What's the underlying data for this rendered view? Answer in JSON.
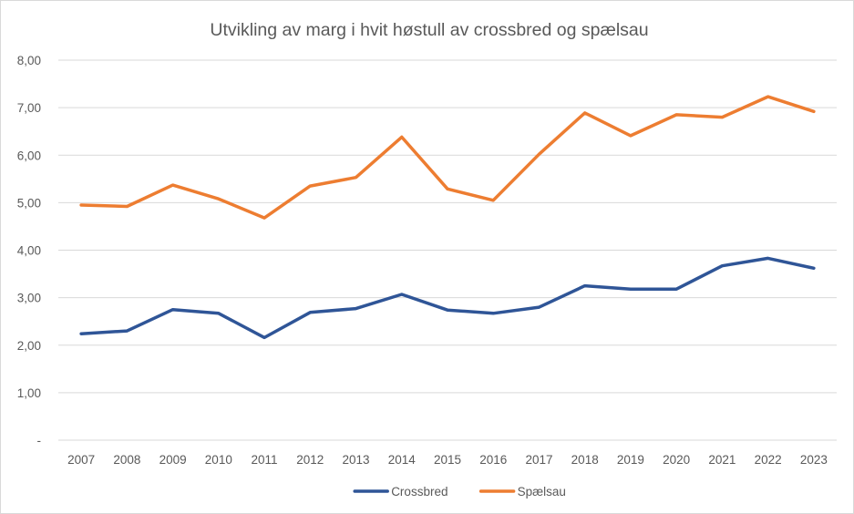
{
  "chart_data": {
    "type": "line",
    "title": "Utvikling  av marg i hvit høstull av crossbred og spælsau",
    "xlabel": "",
    "ylabel": "",
    "x": [
      "2007",
      "2008",
      "2009",
      "2010",
      "2011",
      "2012",
      "2013",
      "2014",
      "2015",
      "2016",
      "2017",
      "2018",
      "2019",
      "2020",
      "2021",
      "2022",
      "2023"
    ],
    "ylim": [
      0,
      8
    ],
    "yticks": [
      0,
      1,
      2,
      3,
      4,
      5,
      6,
      7,
      8
    ],
    "ytick_labels": [
      "-",
      "1,00",
      "2,00",
      "3,00",
      "4,00",
      "5,00",
      "6,00",
      "7,00",
      "8,00"
    ],
    "grid": "horizontal",
    "legend_position": "bottom",
    "series": [
      {
        "name": "Crossbred",
        "color": "#2f5597",
        "values": [
          2.24,
          2.3,
          2.75,
          2.67,
          2.16,
          2.69,
          2.77,
          3.07,
          2.74,
          2.67,
          2.8,
          3.25,
          3.18,
          3.18,
          3.67,
          3.83,
          3.62
        ]
      },
      {
        "name": "Spælsau",
        "color": "#ed7d31",
        "values": [
          4.95,
          4.92,
          5.37,
          5.08,
          4.68,
          5.35,
          5.53,
          6.38,
          5.29,
          5.05,
          6.02,
          6.89,
          6.41,
          6.85,
          6.8,
          7.23,
          6.92
        ]
      }
    ]
  }
}
